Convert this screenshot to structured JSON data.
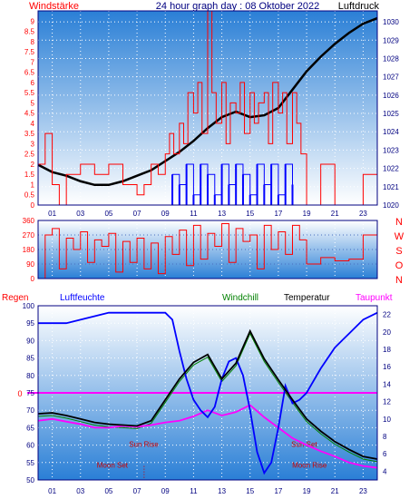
{
  "chart_data": [
    {
      "type": "line",
      "title": "24 hour graph day : 08 Oktober 2022",
      "left_label": "Windstärke",
      "right_label": "Luftdruck",
      "x_ticks": [
        "01",
        "03",
        "05",
        "07",
        "09",
        "11",
        "13",
        "15",
        "17",
        "19",
        "21",
        "23"
      ],
      "y_left_ticks": [
        "0",
        "0.5",
        "1",
        "1.5",
        "2",
        "2.5",
        "3",
        "3.5",
        "4",
        "4.5",
        "5",
        "5.5",
        "6",
        "6.5",
        "7",
        "7.5",
        "8",
        "8.5",
        "9"
      ],
      "y_left_range": [
        0,
        9.5
      ],
      "y_right_ticks": [
        "1020",
        "1021",
        "1022",
        "1023",
        "1024",
        "1025",
        "1026",
        "1027",
        "1028",
        "1029",
        "1030"
      ],
      "y_right_range": [
        1020,
        1030.6
      ],
      "series": [
        {
          "kind": "pressure",
          "color": "#000000",
          "x": [
            0,
            1,
            2,
            3,
            4,
            5,
            6,
            7,
            8,
            9,
            10,
            11,
            12,
            13,
            14,
            15,
            16,
            17,
            18,
            19,
            20,
            21,
            22,
            23,
            24
          ],
          "y": [
            1022.2,
            1021.8,
            1021.6,
            1021.3,
            1021.1,
            1021.1,
            1021.3,
            1021.6,
            1021.9,
            1022.4,
            1022.9,
            1023.5,
            1024.2,
            1024.8,
            1025.1,
            1024.8,
            1024.9,
            1025.3,
            1026.3,
            1027.3,
            1028.1,
            1028.8,
            1029.4,
            1029.9,
            1030.2
          ]
        },
        {
          "kind": "wind_gust",
          "color": "#ff0000",
          "x": [
            0,
            0.5,
            1,
            1.5,
            2,
            3,
            4,
            5,
            6,
            7,
            7.5,
            8,
            8.5,
            9,
            9.3,
            9.6,
            10,
            10.3,
            10.6,
            11,
            11.3,
            11.6,
            12,
            12.3,
            12.6,
            13,
            13.3,
            13.6,
            14,
            14.3,
            14.6,
            15,
            15.3,
            15.6,
            16,
            16.3,
            16.6,
            17,
            17.3,
            17.6,
            18,
            18.3,
            18.6,
            19,
            20,
            21,
            22,
            23,
            24
          ],
          "y": [
            2,
            3.5,
            1,
            0,
            1.5,
            2,
            1.5,
            2,
            1,
            0.5,
            1,
            2,
            1.5,
            2.5,
            3.5,
            2.5,
            4,
            3,
            5.5,
            4.5,
            6,
            3.5,
            9.5,
            5.5,
            4,
            6,
            3,
            5,
            4.5,
            6,
            3.5,
            5.5,
            4,
            5,
            5.5,
            3,
            6,
            4.5,
            5.5,
            3,
            5.5,
            4,
            2.5,
            0,
            2,
            0,
            0,
            1.5,
            0
          ]
        },
        {
          "kind": "wind_mean",
          "color": "#0000ff",
          "x": [
            9.5,
            10,
            10.5,
            11,
            11.5,
            12,
            12.5,
            13,
            13.5,
            14,
            14.5,
            15,
            15.5,
            16,
            16.5,
            17,
            17.5,
            18
          ],
          "y": [
            1.5,
            1,
            2,
            0.5,
            2,
            1.5,
            0.5,
            2,
            1,
            2,
            1.5,
            0.5,
            2,
            1,
            2,
            0.5,
            2,
            1
          ]
        }
      ]
    },
    {
      "type": "line",
      "title": "",
      "y_ticks": [
        "0",
        "90",
        "180",
        "270",
        "360"
      ],
      "y_range": [
        0,
        360
      ],
      "compass_labels": [
        "N",
        "W",
        "S",
        "O",
        "N"
      ],
      "series": [
        {
          "kind": "wind_direction",
          "color": "#ff0000",
          "x": [
            0,
            0.5,
            1,
            1.5,
            2,
            2.5,
            3,
            3.5,
            4,
            4.5,
            5,
            5.5,
            6,
            6.5,
            7,
            7.5,
            8,
            8.5,
            9,
            9.5,
            10,
            10.5,
            11,
            11.5,
            12,
            12.5,
            13,
            13.5,
            14,
            14.5,
            15,
            15.5,
            16,
            16.5,
            17,
            17.5,
            18,
            18.5,
            19,
            20,
            21,
            22,
            23,
            24
          ],
          "y": [
            0,
            270,
            310,
            60,
            250,
            180,
            290,
            100,
            240,
            200,
            280,
            40,
            230,
            100,
            250,
            60,
            220,
            30,
            260,
            150,
            300,
            80,
            330,
            120,
            280,
            200,
            340,
            100,
            310,
            230,
            270,
            60,
            330,
            180,
            290,
            150,
            330,
            240,
            90,
            130,
            110,
            120,
            270,
            300
          ]
        }
      ]
    },
    {
      "type": "line",
      "title": "",
      "labels": {
        "rain": "Regen",
        "humidity": "Luftfeuchte",
        "windchill": "Windchill",
        "temperature": "Temperatur",
        "dewpoint": "Taupunkt",
        "rain_zero": "0",
        "sun_rise": "Sun Rise",
        "sun_set": "Sun Set",
        "moon_set": "Moon Set",
        "moon_rise": "Moon Rise"
      },
      "y_left_ticks": [
        "50",
        "55",
        "60",
        "65",
        "70",
        "75",
        "80",
        "85",
        "90",
        "95",
        "100"
      ],
      "y_left_range": [
        50,
        100
      ],
      "y_right_ticks": [
        "4",
        "6",
        "8",
        "10",
        "12",
        "14",
        "16",
        "18",
        "20",
        "22"
      ],
      "y_right_range": [
        3,
        23
      ],
      "rain_level": 75,
      "sun_rise_hour": 7.6,
      "sun_set_hour": 18.7,
      "moon_set_hour": 7.5,
      "moon_rise_hour": 19.2,
      "series": [
        {
          "kind": "humidity",
          "color": "#0000ff",
          "x": [
            0,
            1,
            2,
            3,
            4,
            5,
            6,
            7,
            8,
            9,
            9.5,
            10,
            10.5,
            11,
            11.5,
            12,
            12.5,
            13,
            13.5,
            14,
            14.5,
            15,
            15.5,
            16,
            16.5,
            17,
            17.5,
            18,
            18.5,
            19,
            20,
            21,
            22,
            23,
            24
          ],
          "y": [
            95,
            95,
            95,
            96,
            97,
            98,
            98,
            98,
            98,
            98,
            96,
            87,
            79,
            73,
            70,
            68,
            71,
            79,
            84,
            85,
            80,
            70,
            58,
            52,
            55,
            65,
            77,
            72,
            73,
            75,
            82,
            88,
            92,
            96,
            98
          ]
        },
        {
          "kind": "temperature",
          "color": "#000000",
          "x": [
            0,
            1,
            2,
            3,
            4,
            5,
            6,
            7,
            8,
            9,
            10,
            11,
            12,
            13,
            14,
            15,
            16,
            17,
            18,
            19,
            20,
            21,
            22,
            23,
            24
          ],
          "y": [
            10.6,
            10.7,
            10.4,
            10.0,
            9.6,
            9.4,
            9.3,
            9.2,
            9.8,
            12.2,
            14.6,
            16.5,
            17.4,
            14.6,
            16.4,
            20.1,
            16.9,
            14.5,
            12.2,
            10.0,
            8.6,
            7.4,
            6.5,
            5.7,
            5.4
          ]
        },
        {
          "kind": "windchill",
          "color": "#008000",
          "x": [
            0,
            1,
            2,
            3,
            4,
            5,
            6,
            7,
            8,
            9,
            10,
            11,
            12,
            13,
            14,
            15,
            16,
            17,
            18,
            19,
            20,
            21,
            22,
            23,
            24
          ],
          "y": [
            10.3,
            10.4,
            10.1,
            9.7,
            9.3,
            9.1,
            9.0,
            8.9,
            9.5,
            11.9,
            14.3,
            16.2,
            17.1,
            14.3,
            16.1,
            19.8,
            16.6,
            14.2,
            11.9,
            9.7,
            8.3,
            7.1,
            6.2,
            5.4,
            5.1
          ]
        },
        {
          "kind": "dewpoint",
          "color": "#ff00ff",
          "x": [
            0,
            1,
            2,
            3,
            4,
            5,
            6,
            7,
            8,
            9,
            10,
            11,
            12,
            13,
            14,
            15,
            16,
            17,
            18,
            19,
            20,
            21,
            22,
            23,
            24
          ],
          "y": [
            9.8,
            10.0,
            9.7,
            9.4,
            9.0,
            9.0,
            9.2,
            9.1,
            9.3,
            9.6,
            9.8,
            10.3,
            11.0,
            10.4,
            10.8,
            11.6,
            10.2,
            9.0,
            7.8,
            7.0,
            6.3,
            5.7,
            5.0,
            4.6,
            4.4
          ]
        }
      ]
    }
  ]
}
